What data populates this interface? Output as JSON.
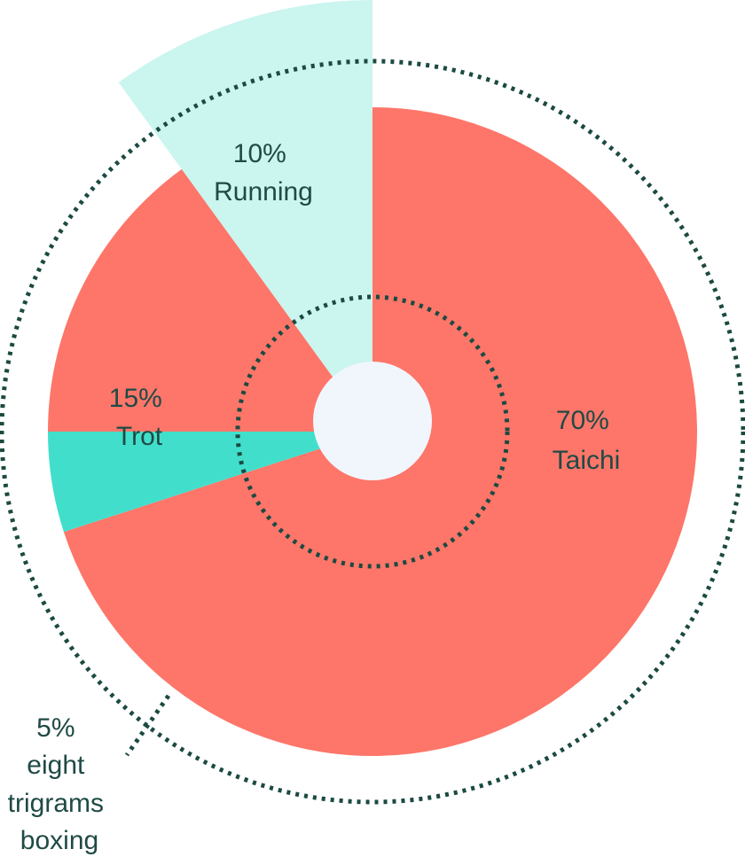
{
  "chart_data": {
    "type": "pie",
    "title": "",
    "slices": [
      {
        "name": "Taichi",
        "value": 70,
        "percent_label": "70%",
        "color": "#fd7669"
      },
      {
        "name": "eight trigrams boxing",
        "value": 5,
        "percent_label": "5%",
        "color": "#41dfcb",
        "label_lines": [
          "eight",
          "trigrams",
          "boxing"
        ]
      },
      {
        "name": "Trot",
        "value": 15,
        "percent_label": "15%",
        "color": "#fd7669"
      },
      {
        "name": "Running",
        "value": 10,
        "percent_label": "10%",
        "color": "#cbf5ef",
        "exploded": true
      }
    ],
    "decorations": {
      "center_dot_color": "#f1f6fd",
      "dotted_ring_color": "#1b4a42"
    }
  }
}
